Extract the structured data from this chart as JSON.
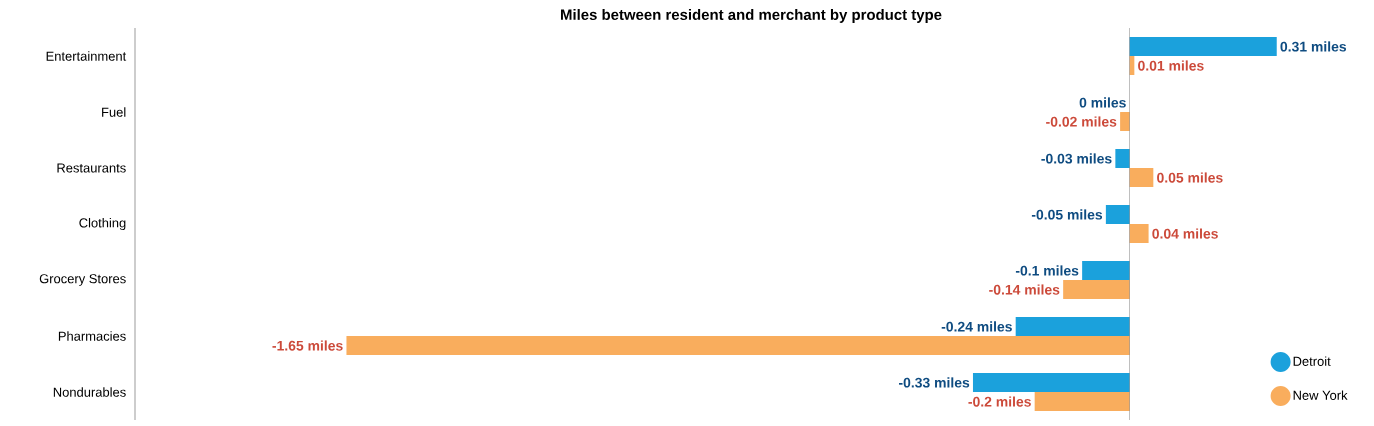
{
  "chart_data": {
    "type": "bar",
    "orientation": "horizontal",
    "title": "Miles between resident and merchant by product type",
    "categories": [
      "Entertainment",
      "Fuel",
      "Restaurants",
      "Clothing",
      "Grocery Stores",
      "Pharmacies",
      "Nondurables"
    ],
    "series": [
      {
        "name": "Detroit",
        "color": "#1ba1dc",
        "values": [
          0.31,
          0,
          -0.03,
          -0.05,
          -0.1,
          -0.24,
          -0.33
        ],
        "value_labels": [
          "0.31 miles",
          "0 miles",
          "-0.03 miles",
          "-0.05 miles",
          "-0.1 miles",
          "-0.24 miles",
          "-0.33 miles"
        ]
      },
      {
        "name": "New York",
        "color": "#f9ad5d",
        "values": [
          0.01,
          -0.02,
          0.05,
          0.04,
          -0.14,
          -1.65,
          -0.2
        ],
        "value_labels": [
          "0.01 miles",
          "-0.02 miles",
          "0.05 miles",
          "0.04 miles",
          "-0.14 miles",
          "-1.65 miles",
          "-0.2 miles"
        ]
      }
    ],
    "tick_labels": "y",
    "legend": "bottom right"
  }
}
